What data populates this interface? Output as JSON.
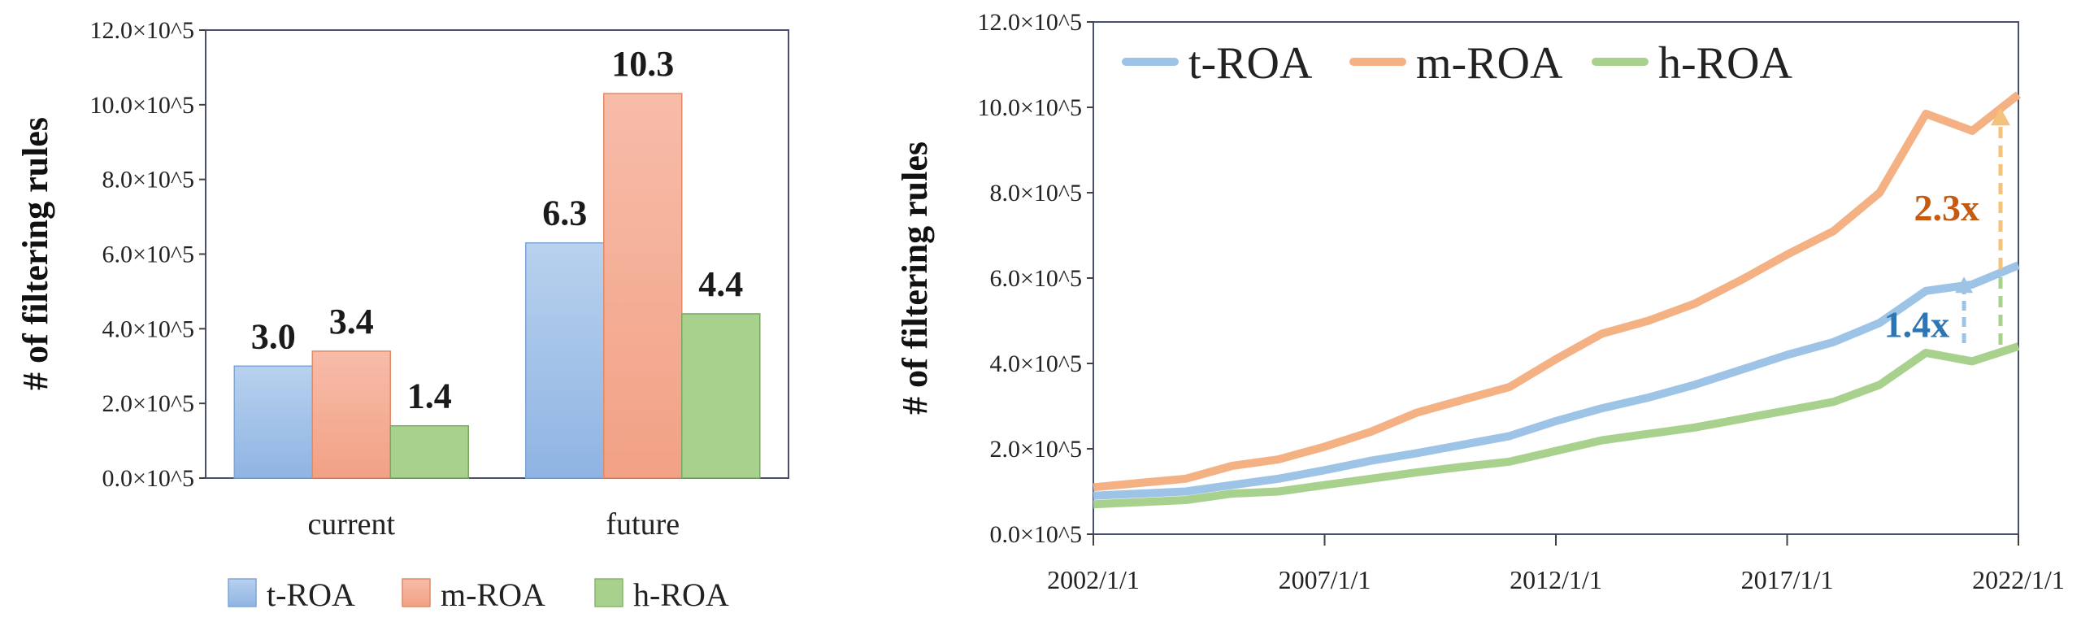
{
  "colors": {
    "t_roa": "#9dc3e6",
    "t_roa_fill_top": "#b8d1ee",
    "t_roa_fill_bottom": "#8fb4e3",
    "m_roa": "#f4b183",
    "m_roa_fill_top": "#f7bca9",
    "m_roa_fill_bottom": "#f2a185",
    "h_roa": "#a9d18e",
    "axis": "#404040",
    "frame": "#4a4f6b",
    "annot_m": "#c55a11",
    "annot_t": "#2e75b6",
    "arrow_m": "#f4c27a",
    "arrow_t": "#9dc3e6",
    "arrow_h": "#a9d18e"
  },
  "chart_data": [
    {
      "type": "bar",
      "ylabel": "# of filtering rules",
      "ylim": [
        0,
        12
      ],
      "yticks": [
        "0.0×10^5",
        "2.0×10^5",
        "4.0×10^5",
        "6.0×10^5",
        "8.0×10^5",
        "10.0×10^5",
        "12.0×10^5"
      ],
      "categories": [
        "current",
        "future"
      ],
      "series": [
        {
          "name": "t-ROA",
          "values": [
            3.0,
            6.3
          ],
          "labels": [
            "3.0",
            "6.3"
          ]
        },
        {
          "name": "m-ROA",
          "values": [
            3.4,
            10.3
          ],
          "labels": [
            "3.4",
            "10.3"
          ]
        },
        {
          "name": "h-ROA",
          "values": [
            1.4,
            4.4
          ],
          "labels": [
            "1.4",
            "4.4"
          ]
        }
      ],
      "legend": {
        "position": "bottom",
        "entries": [
          "t-ROA",
          "m-ROA",
          "h-ROA"
        ]
      }
    },
    {
      "type": "line",
      "ylabel": "# of filtering rules",
      "ylim": [
        0,
        12
      ],
      "xlim": [
        2002,
        2022
      ],
      "yticks": [
        "0.0×10^5",
        "2.0×10^5",
        "4.0×10^5",
        "6.0×10^5",
        "8.0×10^5",
        "10.0×10^5",
        "12.0×10^5"
      ],
      "xticks": [
        {
          "year": 2002,
          "label": "2002/1/1"
        },
        {
          "year": 2007,
          "label": "2007/1/1"
        },
        {
          "year": 2012,
          "label": "2012/1/1"
        },
        {
          "year": 2017,
          "label": "2017/1/1"
        },
        {
          "year": 2022,
          "label": "2022/1/1"
        }
      ],
      "x": [
        2002,
        2003,
        2004,
        2005,
        2006,
        2007,
        2008,
        2009,
        2010,
        2011,
        2012,
        2013,
        2014,
        2015,
        2016,
        2017,
        2018,
        2019,
        2020,
        2021,
        2022
      ],
      "series": [
        {
          "name": "t-ROA",
          "values": [
            0.9,
            0.95,
            1.0,
            1.15,
            1.3,
            1.5,
            1.72,
            1.9,
            2.1,
            2.3,
            2.65,
            2.95,
            3.2,
            3.5,
            3.85,
            4.2,
            4.5,
            4.95,
            5.7,
            5.85,
            6.3
          ]
        },
        {
          "name": "m-ROA",
          "values": [
            1.1,
            1.2,
            1.3,
            1.6,
            1.75,
            2.05,
            2.4,
            2.85,
            3.15,
            3.45,
            4.1,
            4.7,
            5.0,
            5.4,
            5.95,
            6.55,
            7.1,
            8.0,
            9.85,
            9.45,
            10.3
          ]
        },
        {
          "name": "h-ROA",
          "values": [
            0.7,
            0.75,
            0.8,
            0.95,
            1.0,
            1.15,
            1.3,
            1.45,
            1.58,
            1.7,
            1.95,
            2.2,
            2.35,
            2.5,
            2.7,
            2.9,
            3.1,
            3.5,
            4.25,
            4.05,
            4.4
          ]
        }
      ],
      "legend": {
        "position": "top-left",
        "entries": [
          "t-ROA",
          "m-ROA",
          "h-ROA"
        ]
      },
      "annotations": [
        {
          "text": "2.3x",
          "series": "m-ROA",
          "from_value": 4.4,
          "to_value": 10.3,
          "year": 2022
        },
        {
          "text": "1.4x",
          "series": "t-ROA",
          "from_value": 4.4,
          "to_value": 6.3,
          "year": 2021
        }
      ]
    }
  ]
}
